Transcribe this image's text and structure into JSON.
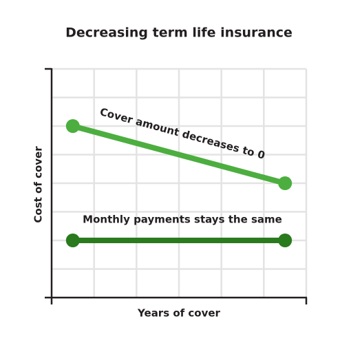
{
  "chart_data": {
    "type": "line",
    "title": "Decreasing term life insurance",
    "x_label": "Years of cover",
    "y_label": "Cost of cover",
    "x": [
      0.5,
      5.5
    ],
    "xlim": [
      0,
      6
    ],
    "ylim": [
      0,
      8
    ],
    "grid": true,
    "series": [
      {
        "name": "Cover amount decreases to 0",
        "color": "#4cae3f",
        "values": [
          6,
          4
        ]
      },
      {
        "name": "Monthly payments stays the same",
        "color": "#2a7a1e",
        "values": [
          2,
          2
        ]
      }
    ]
  }
}
